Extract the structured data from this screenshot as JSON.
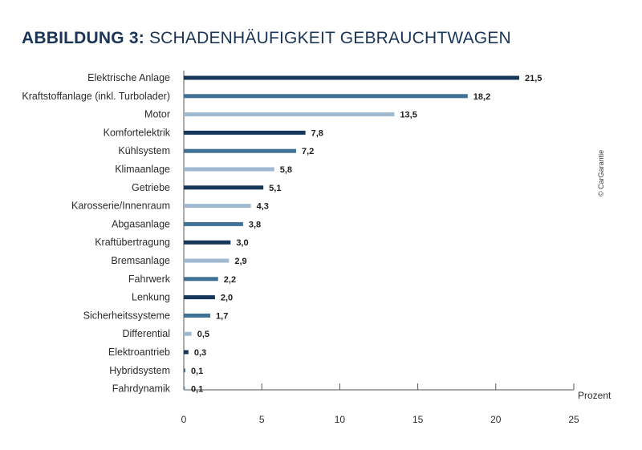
{
  "header": {
    "title_lead": "ABBILDUNG 3:",
    "title_rest": "SCHADENHÄUFIGKEIT GEBRAUCHTWAGEN"
  },
  "copyright": "© CarGarantie",
  "chart_data": {
    "type": "bar",
    "orientation": "horizontal",
    "categories": [
      "Elektrische Anlage",
      "Kraftstoffanlage (inkl. Turbolader)",
      "Motor",
      "Komfortelektrik",
      "Kühlsystem",
      "Klimaanlage",
      "Getriebe",
      "Karosserie/Innenraum",
      "Abgasanlage",
      "Kraftübertragung",
      "Bremsanlage",
      "Fahrwerk",
      "Lenkung",
      "Sicherheitssysteme",
      "Differential",
      "Elektroantrieb",
      "Hybridsystem",
      "Fahrdynamik"
    ],
    "values": [
      21.5,
      18.2,
      13.5,
      7.8,
      7.2,
      5.8,
      5.1,
      4.3,
      3.8,
      3.0,
      2.9,
      2.2,
      2.0,
      1.7,
      0.5,
      0.3,
      0.1,
      0.1
    ],
    "value_labels": [
      "21,5",
      "18,2",
      "13,5",
      "7,8",
      "7,2",
      "5,8",
      "5,1",
      "4,3",
      "3,8",
      "3,0",
      "2,9",
      "2,2",
      "2,0",
      "1,7",
      "0,5",
      "0,3",
      "0,1",
      "0,1"
    ],
    "bar_colors": [
      "#17375a",
      "#3f7296",
      "#9fb9d0",
      "#17375a",
      "#3f7296",
      "#9fb9d0",
      "#17375a",
      "#9fb9d0",
      "#3f7296",
      "#17375a",
      "#9fb9d0",
      "#3f7296",
      "#17375a",
      "#3f7296",
      "#9fb9d0",
      "#17375a",
      "#3f7296",
      "#9fb9d0"
    ],
    "xticks": [
      0,
      5,
      10,
      15,
      20,
      25
    ],
    "xlim": [
      0,
      25
    ],
    "xlabel": "Prozent",
    "grid": false
  },
  "colors": {
    "title": "#1a3556",
    "axis": "#555555"
  }
}
